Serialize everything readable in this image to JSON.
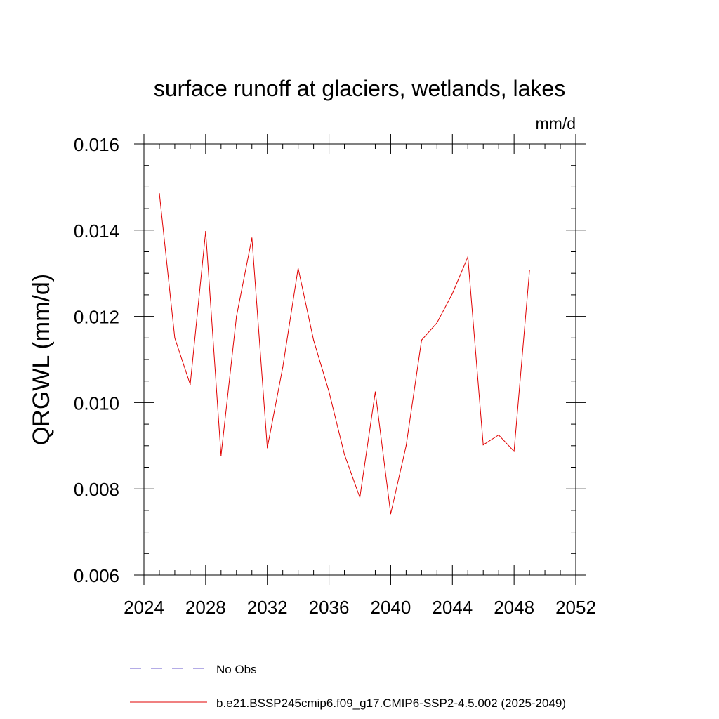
{
  "chart_data": {
    "type": "line",
    "title": "surface runoff at glaciers, wetlands, lakes",
    "units": "mm/d",
    "xlabel": "",
    "ylabel": "QRGWL  (mm/d)",
    "xlim": [
      2024,
      2052
    ],
    "ylim": [
      0.006,
      0.016
    ],
    "x_ticks": [
      2024,
      2028,
      2032,
      2036,
      2040,
      2044,
      2048,
      2052
    ],
    "y_ticks": [
      0.006,
      0.008,
      0.01,
      0.012,
      0.014,
      0.016
    ],
    "y_tick_labels": [
      "0.006",
      "0.008",
      "0.010",
      "0.012",
      "0.014",
      "0.016"
    ],
    "grid": false,
    "legend_position": "bottom",
    "legend": [
      {
        "label": "No Obs",
        "color": "#6a5acd",
        "dash": true
      },
      {
        "label": "b.e21.BSSP245cmip6.f09_g17.CMIP6-SSP2-4.5.002 (2025-2049)",
        "color": "#e00000",
        "dash": false
      }
    ],
    "series": [
      {
        "name": "b.e21.BSSP245cmip6.f09_g17.CMIP6-SSP2-4.5.002 (2025-2049)",
        "color": "#e00000",
        "x": [
          2025,
          2026,
          2027,
          2028,
          2029,
          2030,
          2031,
          2032,
          2033,
          2034,
          2035,
          2036,
          2037,
          2038,
          2039,
          2040,
          2041,
          2042,
          2043,
          2044,
          2045,
          2046,
          2047,
          2048,
          2049
        ],
        "values": [
          0.01485,
          0.0115,
          0.01042,
          0.01397,
          0.00877,
          0.012,
          0.01382,
          0.00895,
          0.01082,
          0.01312,
          0.01145,
          0.01025,
          0.0088,
          0.0078,
          0.01025,
          0.00742,
          0.009,
          0.01145,
          0.01185,
          0.01253,
          0.01338,
          0.00902,
          0.00925,
          0.00887,
          0.01306
        ]
      }
    ]
  }
}
